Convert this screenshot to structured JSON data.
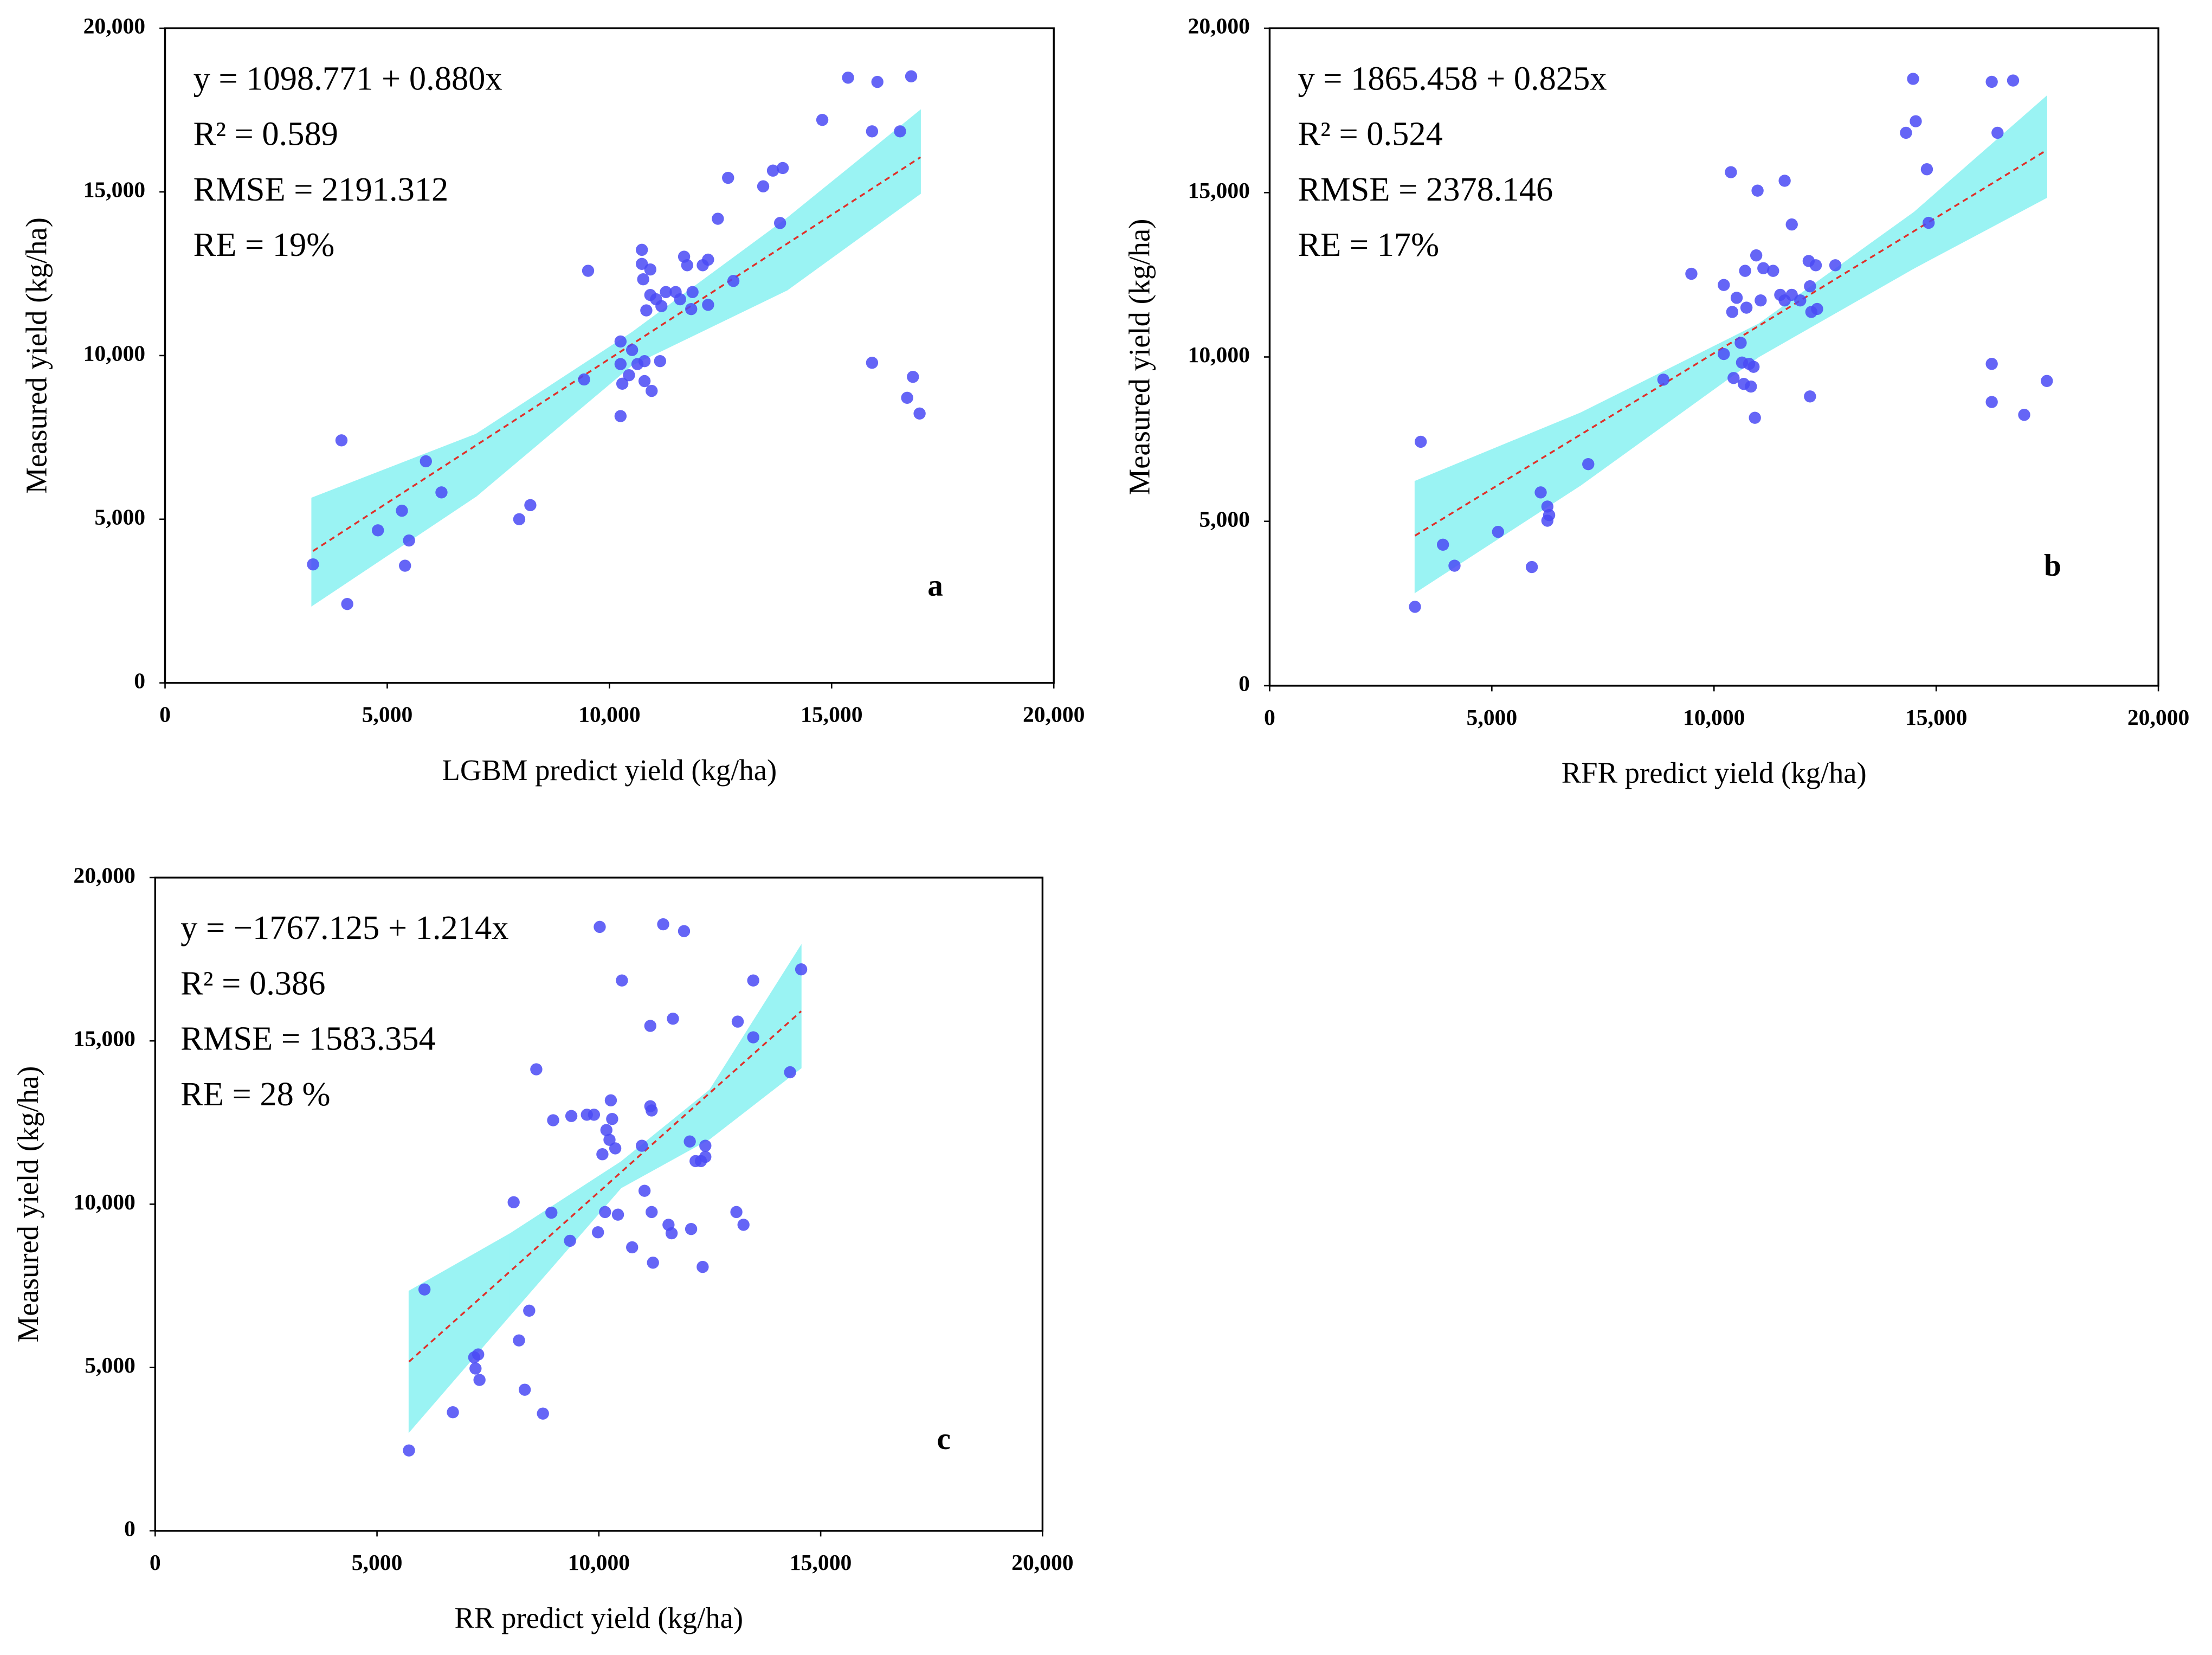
{
  "chart_data": [
    {
      "type": "scatter",
      "panel": "a",
      "annotations": [
        "y = 1098.771 + 0.880x",
        "R² = 0.589",
        "RMSE = 2191.312",
        "RE = 19%"
      ],
      "x_label": "LGBM predict yield (kg/ha)",
      "y_label": "Measured yield (kg/ha)",
      "xlim": [
        0,
        20000
      ],
      "ylim": [
        0,
        20000
      ],
      "xticks": [
        0,
        {
          "value": 5000,
          "label": "5,000"
        },
        {
          "value": 10000,
          "label": "10,000"
        },
        {
          "value": 15000,
          "label": "15,000"
        },
        {
          "value": 20000,
          "label": "20,000"
        }
      ],
      "yticks": [
        0,
        {
          "value": 5000,
          "label": "5,000"
        },
        {
          "value": 10000,
          "label": "10,000"
        },
        {
          "value": 15000,
          "label": "15,000"
        },
        {
          "value": 20000,
          "label": "20,000"
        }
      ],
      "point_color": "#4a4af5",
      "fit_color": "#e0302a",
      "band_color": "#9af3f3",
      "x": [
        3330,
        3970,
        4100,
        4790,
        5330,
        5400,
        5490,
        5870,
        6220,
        7970,
        8220,
        9430,
        9520,
        10250,
        10250,
        10250,
        10290,
        10440,
        10510,
        10630,
        10730,
        10730,
        10760,
        10790,
        10790,
        10830,
        10920,
        10950,
        10920,
        11050,
        11140,
        11170,
        11270,
        11490,
        11590,
        11680,
        11750,
        11840,
        11870,
        12100,
        12220,
        12220,
        12440,
        12670,
        12790,
        13460,
        13680,
        13900,
        13840,
        14790,
        15370,
        15910,
        15910,
        16030,
        16540,
        16700,
        16790,
        16830,
        16980
      ],
      "y": [
        3620,
        7410,
        2410,
        4660,
        5260,
        3580,
        4350,
        6770,
        5820,
        5000,
        5430,
        9270,
        12590,
        8150,
        10430,
        9740,
        9140,
        9400,
        10170,
        9740,
        13230,
        12800,
        12330,
        9830,
        9220,
        11380,
        12630,
        8920,
        11850,
        11720,
        9830,
        11510,
        11940,
        11940,
        11720,
        13020,
        12760,
        11420,
        11940,
        12760,
        12930,
        11550,
        14180,
        15430,
        12280,
        15170,
        15650,
        15730,
        14050,
        17200,
        18490,
        9780,
        16850,
        18360,
        16850,
        8710,
        18530,
        9350,
        8230
      ],
      "fit": {
        "x": [
          3330,
          17000
        ],
        "y": [
          4029,
          16059
        ]
      },
      "band": {
        "x": [
          3300,
          7000,
          10500,
          14000,
          17000
        ],
        "upper": [
          5650,
          7600,
          10700,
          14200,
          17500
        ],
        "lower": [
          2350,
          5700,
          9700,
          12000,
          14950
        ]
      }
    },
    {
      "type": "scatter",
      "panel": "b",
      "annotations": [
        "y = 1865.458 + 0.825x",
        "R² = 0.524",
        "RMSE = 2378.146",
        "RE = 17%"
      ],
      "x_label": "RFR predict yield (kg/ha)",
      "y_label": "Measured yield (kg/ha)",
      "xlim": [
        0,
        20000
      ],
      "ylim": [
        0,
        20000
      ],
      "xticks": [
        0,
        {
          "value": 5000,
          "label": "5,000"
        },
        {
          "value": 10000,
          "label": "10,000"
        },
        {
          "value": 15000,
          "label": "15,000"
        },
        {
          "value": 20000,
          "label": "20,000"
        }
      ],
      "yticks": [
        0,
        {
          "value": 5000,
          "label": "5,000"
        },
        {
          "value": 10000,
          "label": "10,000"
        },
        {
          "value": 15000,
          "label": "15,000"
        },
        {
          "value": 20000,
          "label": "20,000"
        }
      ],
      "point_color": "#4a4af5",
      "fit_color": "#e0302a",
      "band_color": "#9af3f3",
      "x": [
        3270,
        3400,
        3900,
        4160,
        5140,
        5900,
        6100,
        6250,
        6250,
        6290,
        7170,
        8860,
        9490,
        10220,
        10220,
        10380,
        10410,
        10440,
        10510,
        10600,
        10630,
        10670,
        10700,
        10730,
        10790,
        10830,
        10890,
        10920,
        10950,
        10980,
        11050,
        11110,
        11330,
        11490,
        11590,
        11590,
        11750,
        11750,
        11940,
        12130,
        12160,
        12160,
        12190,
        12290,
        12320,
        12730,
        14320,
        14480,
        14540,
        14790,
        14830,
        16250,
        16250,
        16250,
        16380,
        16730,
        16980,
        17490
      ],
      "y": [
        2400,
        7420,
        4290,
        3650,
        4680,
        3610,
        5880,
        5450,
        5020,
        5190,
        6740,
        9310,
        12530,
        10090,
        12190,
        15620,
        11370,
        9360,
        11800,
        10430,
        9830,
        9180,
        12620,
        11500,
        9790,
        9100,
        9700,
        8150,
        13090,
        15060,
        11720,
        12700,
        12620,
        11890,
        11720,
        15360,
        14030,
        11890,
        11720,
        12920,
        12150,
        8800,
        11370,
        12790,
        11460,
        12790,
        16820,
        18460,
        17170,
        15710,
        14080,
        18370,
        9790,
        8630,
        16820,
        18410,
        8240,
        9270
      ],
      "fit": {
        "x": [
          3270,
          17490
        ],
        "y": [
          4563,
          16295
        ]
      },
      "band": {
        "x": [
          3270,
          7000,
          11000,
          14500,
          17490
        ],
        "upper": [
          6220,
          8300,
          11000,
          14400,
          17940
        ],
        "lower": [
          2830,
          6100,
          10000,
          12700,
          14850
        ]
      }
    },
    {
      "type": "scatter",
      "panel": "c",
      "annotations": [
        "y = −1767.125 + 1.214x",
        "R² = 0.386",
        "RMSE = 1583.354",
        "RE = 28 %"
      ],
      "x_label": "RR predict yield (kg/ha)",
      "y_label": "Measured yield (kg/ha)",
      "xlim": [
        0,
        20000
      ],
      "ylim": [
        0,
        20000
      ],
      "xticks": [
        0,
        {
          "value": 5000,
          "label": "5,000"
        },
        {
          "value": 10000,
          "label": "10,000"
        },
        {
          "value": 15000,
          "label": "15,000"
        },
        {
          "value": 20000,
          "label": "20,000"
        }
      ],
      "yticks": [
        0,
        {
          "value": 5000,
          "label": "5,000"
        },
        {
          "value": 10000,
          "label": "10,000"
        },
        {
          "value": 15000,
          "label": "15,000"
        },
        {
          "value": 20000,
          "label": "20,000"
        }
      ],
      "point_color": "#4a4af5",
      "fit_color": "#e0302a",
      "band_color": "#9af3f3",
      "x": [
        5720,
        6070,
        6710,
        7190,
        7220,
        7280,
        7310,
        8080,
        8200,
        8330,
        8430,
        8590,
        8740,
        8930,
        8970,
        9350,
        9380,
        9730,
        9890,
        9980,
        10020,
        10080,
        10140,
        10170,
        10240,
        10270,
        10300,
        10370,
        10430,
        10520,
        10750,
        10970,
        11030,
        11160,
        11160,
        11190,
        11190,
        11220,
        11450,
        11570,
        11640,
        11670,
        11920,
        12050,
        12080,
        12180,
        12300,
        12340,
        12400,
        12400,
        13100,
        13130,
        13260,
        13480,
        13480,
        14310,
        14560
      ],
      "y": [
        2460,
        7390,
        3630,
        5310,
        4970,
        5400,
        4620,
        10060,
        5830,
        4320,
        6740,
        14130,
        3590,
        9740,
        12570,
        8880,
        12700,
        12740,
        12740,
        9140,
        18490,
        11530,
        9760,
        12270,
        11970,
        13180,
        12610,
        11710,
        9680,
        16850,
        8680,
        11790,
        10410,
        15460,
        13000,
        12870,
        9760,
        8210,
        18570,
        9370,
        9110,
        15680,
        18360,
        11920,
        9240,
        11320,
        11320,
        8080,
        11790,
        11450,
        9760,
        15590,
        9370,
        15110,
        16850,
        14040,
        17190
      ],
      "fit": {
        "x": [
          5720,
          14560
        ],
        "y": [
          5177,
          15908
        ]
      },
      "band": {
        "x": [
          5720,
          8000,
          10500,
          12500,
          14560
        ],
        "upper": [
          7340,
          9100,
          11300,
          13500,
          17930
        ],
        "lower": [
          3020,
          6600,
          10500,
          12000,
          14170
        ]
      }
    }
  ]
}
